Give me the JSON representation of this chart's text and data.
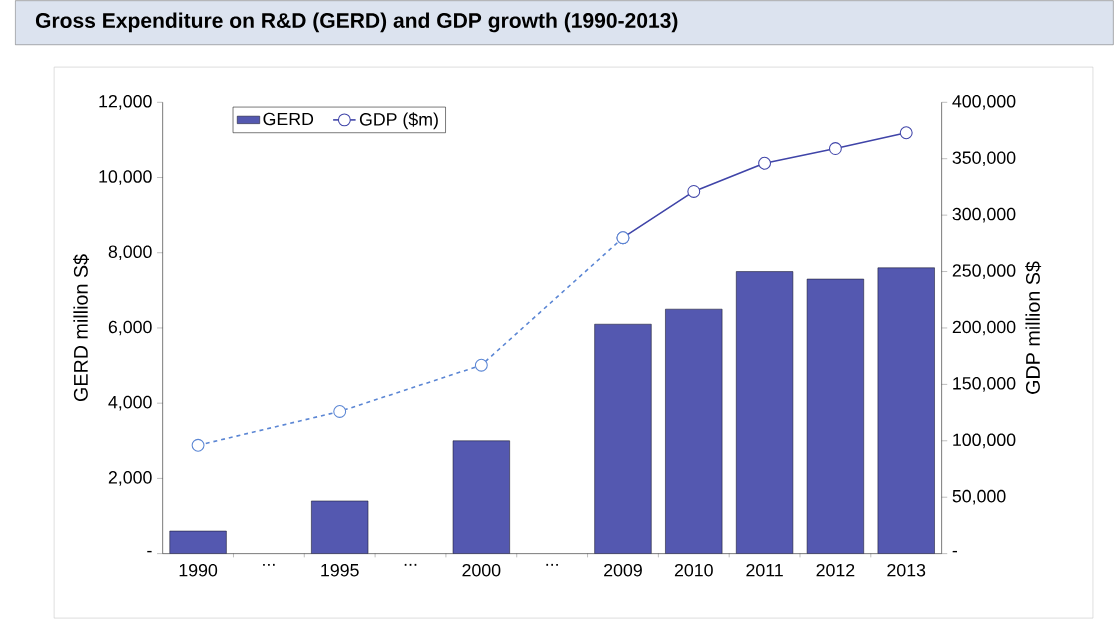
{
  "chart_data": {
    "type": "bar",
    "title": "Gross Expenditure on R&D (GERD) and GDP growth (1990-2013)",
    "categories": [
      "1990",
      "...",
      "1995",
      "...",
      "2000",
      "...",
      "2009",
      "2010",
      "2011",
      "2012",
      "2013"
    ],
    "series": [
      {
        "name": "GERD",
        "color": "#5458b0",
        "values": [
          600,
          null,
          1400,
          null,
          3000,
          null,
          6100,
          6500,
          7500,
          7300,
          7600
        ]
      },
      {
        "name": "GDP ($m)",
        "type": "line",
        "axis": "y2",
        "color": "#3f44a8",
        "line_style": "solid",
        "marker": "circle",
        "values": [
          null,
          null,
          null,
          null,
          null,
          null,
          280000,
          321000,
          346000,
          359000,
          373000
        ]
      },
      {
        "type": "line",
        "axis": "y2",
        "color": "#5b86d4",
        "line_style": "dashed",
        "marker": "circle",
        "values": [
          96000,
          null,
          126000,
          null,
          167000,
          null,
          280000,
          null,
          null,
          null,
          null
        ]
      }
    ],
    "ylabel": "GERD million S$",
    "y2label": "GDP million S$",
    "ylim": [
      0,
      12000
    ],
    "yticks": [
      {
        "value": 0,
        "label": "-"
      },
      {
        "value": 2000,
        "label": "2,000"
      },
      {
        "value": 4000,
        "label": "4,000"
      },
      {
        "value": 6000,
        "label": "6,000"
      },
      {
        "value": 8000,
        "label": "8,000"
      },
      {
        "value": 10000,
        "label": "10,000"
      },
      {
        "value": 12000,
        "label": "12,000"
      }
    ],
    "y2lim": [
      0,
      400000
    ],
    "y2ticks": [
      {
        "value": 0,
        "label": "-"
      },
      {
        "value": 50000,
        "label": "50,000"
      },
      {
        "value": 100000,
        "label": "100,000"
      },
      {
        "value": 150000,
        "label": "150,000"
      },
      {
        "value": 200000,
        "label": "200,000"
      },
      {
        "value": 250000,
        "label": "250,000"
      },
      {
        "value": 300000,
        "label": "300,000"
      },
      {
        "value": 350000,
        "label": "350,000"
      },
      {
        "value": 400000,
        "label": "400,000"
      }
    ],
    "legend": "top left",
    "grid": false
  }
}
